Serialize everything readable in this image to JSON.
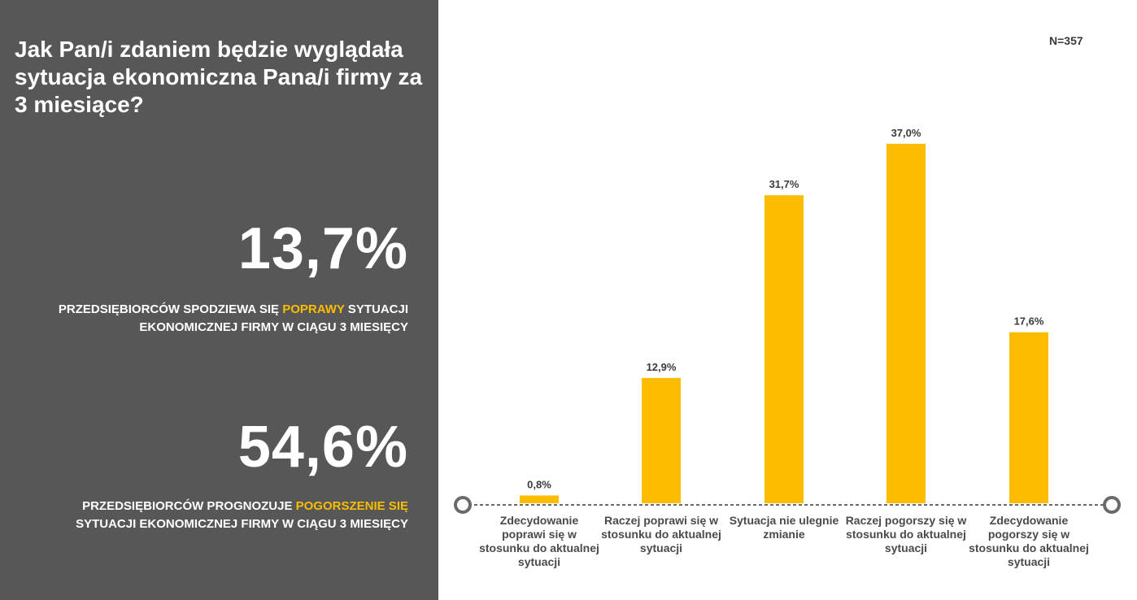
{
  "left_panel": {
    "question": "Jak Pan/i zdaniem będzie wyglądała sytuacja ekonomiczna Pana/i firmy za 3 miesiące?",
    "stat1": {
      "value": "13,7%",
      "caption_pre": "PRZEDSIĘBIORCÓW SPODZIEWA SIĘ ",
      "caption_hl": "POPRAWY",
      "caption_post": " SYTUACJI EKONOMICZNEJ FIRMY W CIĄGU 3 MIESIĘCY"
    },
    "stat2": {
      "value": "54,6%",
      "caption_pre": "PRZEDSIĘBIORCÓW PROGNOZUJE ",
      "caption_hl": "POGORSZENIE SIĘ",
      "caption_post": " SYTUACJI EKONOMICZNEJ FIRMY W CIĄGU 3 MIESIĘCY"
    }
  },
  "sample_size": "N=357",
  "colors": {
    "panel": "#575757",
    "accent": "#fcbc00",
    "text_dark": "#3a3a3a"
  },
  "chart_data": {
    "type": "bar",
    "categories": [
      "Zdecydowanie poprawi się w stosunku do aktualnej sytuacji",
      "Raczej poprawi się w stosunku do aktualnej sytuacji",
      "Sytuacja nie ulegnie zmianie",
      "Raczej pogorszy się w stosunku do aktualnej sytuacji",
      "Zdecydowanie pogorszy się w stosunku do aktualnej sytuacji"
    ],
    "values": [
      0.8,
      12.9,
      31.7,
      37.0,
      17.6
    ],
    "value_labels": [
      "0,8%",
      "12,9%",
      "31,7%",
      "37,0%",
      "17,6%"
    ],
    "ylim": [
      0,
      40
    ],
    "grid": false,
    "legend": "none"
  }
}
